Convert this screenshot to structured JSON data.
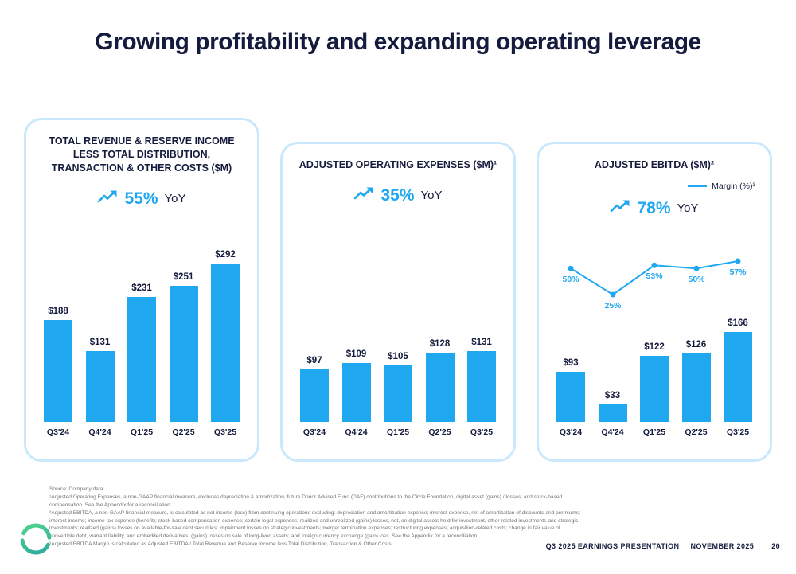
{
  "slide": {
    "title": "Growing profitability and expanding operating leverage",
    "footnotes": [
      "Source: Company data.",
      "¹Adjusted Operating Expenses, a non-GAAP financial measure, excludes depreciation & amortization, future Donor Advised Fund (DAF) contributions to the Circle Foundation, digital asset (gains) / losses, and stock-based compensation. See the Appendix for a reconciliation.",
      "²Adjusted EBITDA, a non-GAAP financial measure, is calculated as net income (loss) from continuing operations excluding: depreciation and amortization expense; interest expense, net of amortization of discounts and premiums; interest income; income tax expense (benefit); stock-based compensation expense; certain legal expenses; realized and unrealized (gains) losses, net, on digital assets held for investment, other related investments and strategic investments; realized (gains) losses on available-for-sale debt securities; impairment losses on strategic investments; merger termination expenses; restructuring expenses; acquisition-related costs; change in fair value of convertible debt, warrant liability, and embedded derivatives; (gains) losses on sale of long-lived assets; and foreign currency exchange (gain) loss. See the Appendix for a reconciliation.",
      "³Adjusted EBITDA Margin is calculated as Adjusted EBITDA / Total Revenue and Reserve Income less Total Distribution, Transaction & Other Costs."
    ],
    "footer": {
      "presentation": "Q3 2025 EARNINGS PRESENTATION",
      "date": "NOVEMBER 2025",
      "page": "20"
    }
  },
  "colors": {
    "accent_blue": "#1FA7F0",
    "dark_navy": "#151B3D",
    "panel_border": "#C9E8FC",
    "footnote_grey": "#6F7377"
  },
  "icons": {
    "trend": "trend-up-icon",
    "logo": "circle-logo"
  },
  "chart_data": [
    {
      "type": "bar",
      "title": "TOTAL REVENUE & RESERVE INCOME LESS TOTAL DISTRIBUTION, TRANSACTION & OTHER COSTS ($M)",
      "yoy": "55%",
      "yoy_suffix": "YoY",
      "categories": [
        "Q3'24",
        "Q4'24",
        "Q1'25",
        "Q2'25",
        "Q3'25"
      ],
      "values": [
        188,
        131,
        231,
        251,
        292
      ],
      "value_labels": [
        "$188",
        "$131",
        "$231",
        "$251",
        "$292"
      ],
      "ylim": [
        0,
        300
      ],
      "grid": false
    },
    {
      "type": "bar",
      "title": "ADJUSTED OPERATING EXPENSES ($M)¹",
      "yoy": "35%",
      "yoy_suffix": "YoY",
      "categories": [
        "Q3'24",
        "Q4'24",
        "Q1'25",
        "Q2'25",
        "Q3'25"
      ],
      "values": [
        97,
        109,
        105,
        128,
        131
      ],
      "value_labels": [
        "$97",
        "$109",
        "$105",
        "$128",
        "$131"
      ],
      "ylim": [
        0,
        300
      ],
      "grid": false
    },
    {
      "type": "bar",
      "title": "ADJUSTED EBITDA ($M)²",
      "yoy": "78%",
      "yoy_suffix": "YoY",
      "categories": [
        "Q3'24",
        "Q4'24",
        "Q1'25",
        "Q2'25",
        "Q3'25"
      ],
      "values": [
        93,
        33,
        122,
        126,
        166
      ],
      "value_labels": [
        "$93",
        "$33",
        "$122",
        "$126",
        "$166"
      ],
      "ylim": [
        0,
        300
      ],
      "grid": false,
      "line_series": {
        "name": "Margin (%)",
        "legend_label": "Margin (%)³",
        "legend_position": "top-right",
        "values": [
          50,
          25,
          53,
          50,
          57
        ],
        "labels": [
          "50%",
          "25%",
          "53%",
          "50%",
          "57%"
        ]
      }
    }
  ]
}
